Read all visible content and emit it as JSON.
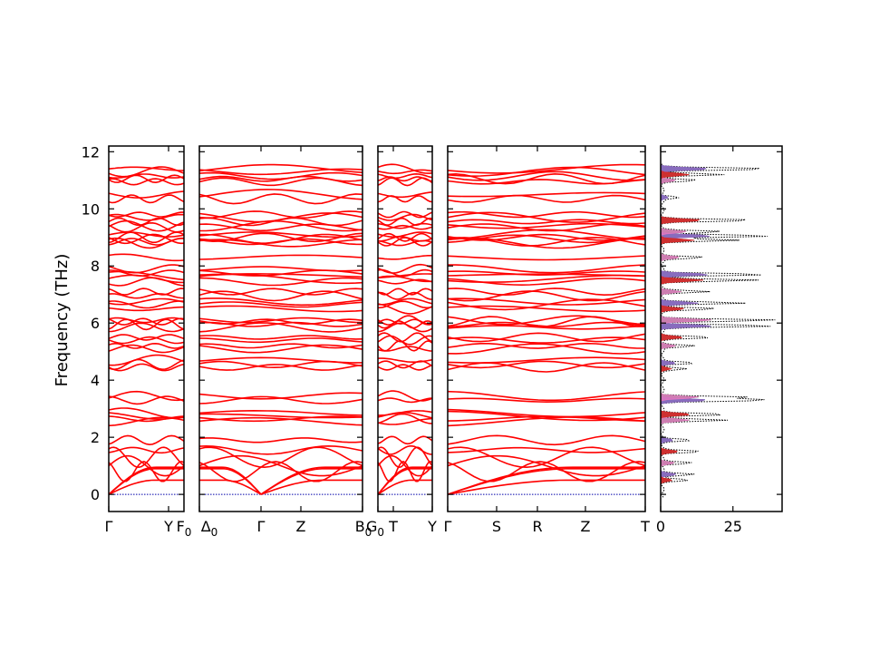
{
  "chart_data": {
    "type": "line",
    "ylabel": "Frequency (THz)",
    "ylim": [
      -0.6,
      12.2
    ],
    "yticks": [
      0,
      2,
      4,
      6,
      8,
      10,
      12
    ],
    "colors": {
      "band": "#ff0000",
      "zero_line": "#0000aa",
      "total_dos": "#000000",
      "pdos": [
        "#1f77b4",
        "#2ca02c",
        "#8c564b",
        "#9467bd",
        "#e377c2",
        "#d62728"
      ]
    },
    "panels": [
      {
        "labels": [
          "Γ",
          "Y"
        ]
      },
      {
        "labels": [
          "F0",
          "Δ0",
          "Γ",
          "Z",
          "B0"
        ]
      },
      {
        "labels": [
          "G0",
          "T",
          "Y"
        ]
      },
      {
        "labels": [
          "Γ",
          "S",
          "R",
          "Z",
          "T"
        ]
      }
    ],
    "flat_bands_thz": [
      11.4,
      11.3,
      11.15,
      11.05,
      10.95,
      10.5,
      10.35,
      9.8,
      9.7,
      9.55,
      9.4,
      9.35,
      9.1,
      9.0,
      8.95,
      8.85,
      8.8,
      8.3,
      7.9,
      7.75,
      7.65,
      7.55,
      7.45,
      7.1,
      6.95,
      6.75,
      6.65,
      6.5,
      6.1,
      6.05,
      5.95,
      5.85,
      5.5,
      5.4,
      5.2,
      5.1,
      4.7,
      4.55,
      4.45,
      3.45,
      3.3,
      2.85,
      2.75,
      2.65,
      2.55,
      1.9,
      1.55
    ],
    "acoustic_top_thz": [
      0.5,
      0.6,
      0.6
    ],
    "dos": {
      "xlim": [
        0,
        42
      ],
      "xticks": [
        0,
        25
      ],
      "peaks": [
        {
          "f": 11.4,
          "v": 39
        },
        {
          "f": 11.2,
          "v": 22
        },
        {
          "f": 11.0,
          "v": 12
        },
        {
          "f": 10.4,
          "v": 6
        },
        {
          "f": 9.6,
          "v": 33
        },
        {
          "f": 9.2,
          "v": 21
        },
        {
          "f": 9.05,
          "v": 40
        },
        {
          "f": 8.9,
          "v": 26
        },
        {
          "f": 8.3,
          "v": 15
        },
        {
          "f": 7.7,
          "v": 38
        },
        {
          "f": 7.5,
          "v": 33
        },
        {
          "f": 7.1,
          "v": 16
        },
        {
          "f": 6.7,
          "v": 29
        },
        {
          "f": 6.5,
          "v": 19
        },
        {
          "f": 6.1,
          "v": 40
        },
        {
          "f": 5.9,
          "v": 41
        },
        {
          "f": 5.5,
          "v": 18
        },
        {
          "f": 5.2,
          "v": 12
        },
        {
          "f": 4.6,
          "v": 12
        },
        {
          "f": 4.4,
          "v": 8
        },
        {
          "f": 3.4,
          "v": 30
        },
        {
          "f": 3.3,
          "v": 38
        },
        {
          "f": 2.8,
          "v": 24
        },
        {
          "f": 2.6,
          "v": 22
        },
        {
          "f": 1.9,
          "v": 10
        },
        {
          "f": 1.5,
          "v": 14
        },
        {
          "f": 1.1,
          "v": 11
        },
        {
          "f": 0.7,
          "v": 12
        },
        {
          "f": 0.5,
          "v": 9
        }
      ]
    }
  }
}
